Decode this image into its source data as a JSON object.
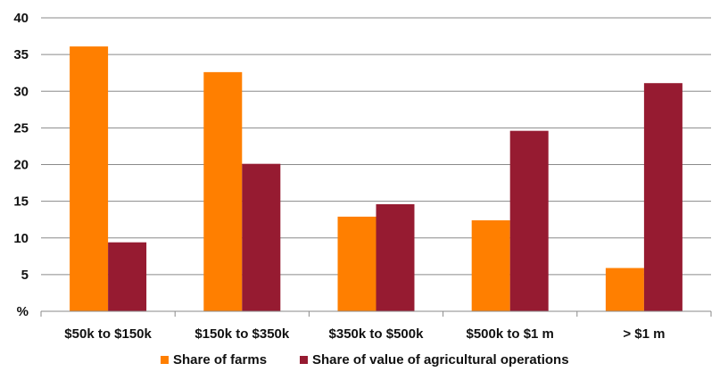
{
  "chart_data": {
    "type": "bar",
    "categories": [
      "$50k to $150k",
      "$150k to $350k",
      "$350k to $500k",
      "$500k to $1 m",
      "> $1 m"
    ],
    "series": [
      {
        "name": "Share of farms",
        "color": "#FF7F00",
        "values": [
          36.1,
          32.6,
          12.9,
          12.4,
          5.9
        ]
      },
      {
        "name": "Share of value of agricultural operations",
        "color": "#961B31",
        "values": [
          9.4,
          20.1,
          14.6,
          24.6,
          31.1
        ]
      }
    ],
    "yticks": [
      "%",
      "5",
      "10",
      "15",
      "20",
      "25",
      "30",
      "35",
      "40"
    ],
    "ylim": [
      0,
      40
    ],
    "grid": true,
    "legend_position": "bottom-center",
    "title": "",
    "xlabel": "",
    "ylabel": ""
  }
}
